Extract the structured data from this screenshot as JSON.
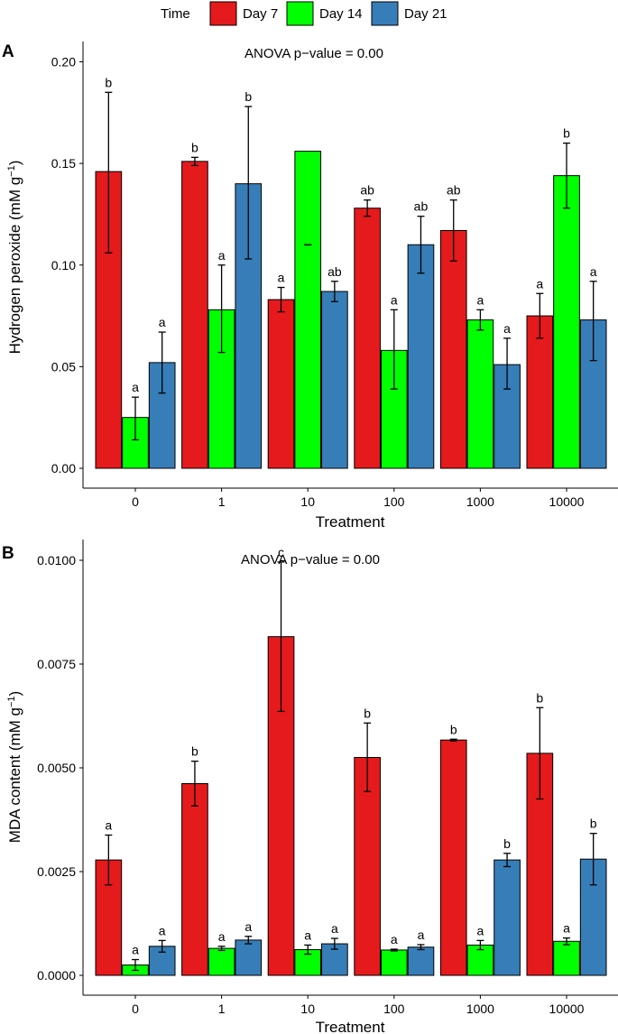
{
  "legend": {
    "title": "Time",
    "entries": [
      {
        "name": "Day 7",
        "color": "#E41A1C"
      },
      {
        "name": "Day 14",
        "color": "#00FF00"
      },
      {
        "name": "Day 21",
        "color": "#377EB8"
      }
    ]
  },
  "chart_data": [
    {
      "panel": "A",
      "type": "bar",
      "annotation": "ANOVA p−value = 0.00",
      "xlabel": "Treatment",
      "ylabel_main": "Hydrogen peroxide (mM g",
      "ylabel_sup": "−1",
      "ylabel_end": ")",
      "ylim": [
        0,
        0.21
      ],
      "yticks": [
        0,
        0.05,
        0.1,
        0.15,
        0.2
      ],
      "ytick_labels": [
        "0.00",
        "0.05",
        "0.10",
        "0.15",
        "0.20"
      ],
      "categories": [
        "0",
        "1",
        "10",
        "100",
        "1000",
        "10000"
      ],
      "series": [
        {
          "name": "Day 7",
          "values": [
            0.146,
            0.151,
            0.083,
            0.128,
            0.117,
            0.075
          ],
          "err_low": [
            0.106,
            0.149,
            0.077,
            0.124,
            0.102,
            0.064
          ],
          "err_high": [
            0.185,
            0.153,
            0.089,
            0.132,
            0.132,
            0.086
          ],
          "labels": [
            "b",
            "b",
            "a",
            "ab",
            "ab",
            "a"
          ]
        },
        {
          "name": "Day 14",
          "values": [
            0.025,
            0.078,
            0.156,
            0.058,
            0.073,
            0.144
          ],
          "err_low": [
            0.014,
            0.057,
            0.11,
            0.039,
            0.068,
            0.128
          ],
          "err_high": [
            0.035,
            0.1,
            0.11,
            0.078,
            0.078,
            0.16
          ],
          "labels": [
            "a",
            "a",
            "",
            "a",
            "a",
            "b"
          ]
        },
        {
          "name": "Day 21",
          "values": [
            0.052,
            0.14,
            0.087,
            0.11,
            0.051,
            0.073
          ],
          "err_low": [
            0.037,
            0.103,
            0.082,
            0.096,
            0.039,
            0.053
          ],
          "err_high": [
            0.067,
            0.178,
            0.092,
            0.124,
            0.064,
            0.092
          ],
          "labels": [
            "a",
            "b",
            "ab",
            "ab",
            "a",
            "a"
          ]
        }
      ]
    },
    {
      "panel": "B",
      "type": "bar",
      "annotation": "ANOVA p−value = 0.00",
      "xlabel": "Treatment",
      "ylabel_main": "MDA content (mM g",
      "ylabel_sup": "−1",
      "ylabel_end": ")",
      "ylim": [
        0,
        0.0105
      ],
      "yticks": [
        0,
        0.0025,
        0.005,
        0.0075,
        0.01
      ],
      "ytick_labels": [
        "0.0000",
        "0.0025",
        "0.0050",
        "0.0075",
        "0.0100"
      ],
      "categories": [
        "0",
        "1",
        "10",
        "100",
        "1000",
        "10000"
      ],
      "series": [
        {
          "name": "Day 7",
          "values": [
            0.00278,
            0.00462,
            0.00816,
            0.00525,
            0.00567,
            0.00535
          ],
          "err_low": [
            0.00218,
            0.00408,
            0.00636,
            0.00443,
            0.00565,
            0.00425
          ],
          "err_high": [
            0.00338,
            0.00516,
            0.00996,
            0.00608,
            0.00569,
            0.00645
          ],
          "labels": [
            "a",
            "b",
            "c",
            "b",
            "b",
            "b"
          ]
        },
        {
          "name": "Day 14",
          "values": [
            0.00025,
            0.00065,
            0.00062,
            0.00061,
            0.00073,
            0.00082
          ],
          "err_low": [
            0.00012,
            0.0006,
            0.00051,
            0.00059,
            0.00062,
            0.00074
          ],
          "err_high": [
            0.00038,
            0.0007,
            0.00073,
            0.00063,
            0.00084,
            0.0009
          ],
          "labels": [
            "a",
            "a",
            "a",
            "a",
            "a",
            "a"
          ]
        },
        {
          "name": "Day 21",
          "values": [
            0.0007,
            0.00085,
            0.00076,
            0.00068,
            0.00278,
            0.0028
          ],
          "err_low": [
            0.00056,
            0.00076,
            0.00063,
            0.00062,
            0.00262,
            0.00218
          ],
          "err_high": [
            0.00084,
            0.00094,
            0.00089,
            0.00074,
            0.00294,
            0.00342
          ],
          "labels": [
            "a",
            "a",
            "a",
            "a",
            "b",
            "b"
          ]
        }
      ]
    }
  ]
}
